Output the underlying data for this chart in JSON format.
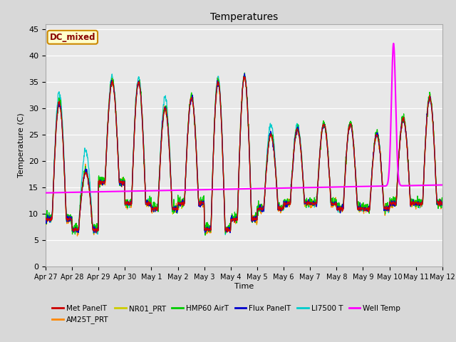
{
  "title": "Temperatures",
  "xlabel": "Time",
  "ylabel": "Temperature (C)",
  "ylim": [
    0,
    46
  ],
  "yticks": [
    0,
    5,
    10,
    15,
    20,
    25,
    30,
    35,
    40,
    45
  ],
  "fig_bg_color": "#d8d8d8",
  "plot_bg_color": "#e8e8e8",
  "annotation_text": "DC_mixed",
  "annotation_bg": "#ffffcc",
  "annotation_border": "#cc8800",
  "annotation_text_color": "#880000",
  "colors": {
    "Met PanelT": "#cc0000",
    "AM25T_PRT": "#ff8800",
    "NR01_PRT": "#cccc00",
    "HMP60 AirT": "#00cc00",
    "Flux PanelT": "#0000cc",
    "LI7500 T": "#00cccc",
    "Well Temp": "#ff00ff"
  },
  "day_labels": [
    "Apr 27",
    "Apr 28",
    "Apr 29",
    "Apr 30",
    "May 1",
    "May 2",
    "May 3",
    "May 4",
    "May 5",
    "May 6",
    "May 7",
    "May 8",
    "May 9",
    "May 10",
    "May 11",
    "May 12"
  ],
  "day_positions": [
    0,
    1,
    2,
    3,
    4,
    5,
    6,
    7,
    8,
    9,
    10,
    11,
    12,
    13,
    14,
    15
  ],
  "peak_temps": [
    31,
    18,
    35,
    35,
    30,
    32,
    35,
    36,
    25,
    26,
    27,
    27,
    25,
    28,
    32
  ],
  "min_temps": [
    9,
    7,
    16,
    12,
    11,
    12,
    7,
    9,
    11,
    12,
    12,
    11,
    11,
    12,
    12
  ],
  "li7500_extra": [
    33,
    22,
    36,
    36,
    32,
    32,
    36,
    36,
    27,
    27,
    27,
    27,
    25,
    28,
    32
  ]
}
